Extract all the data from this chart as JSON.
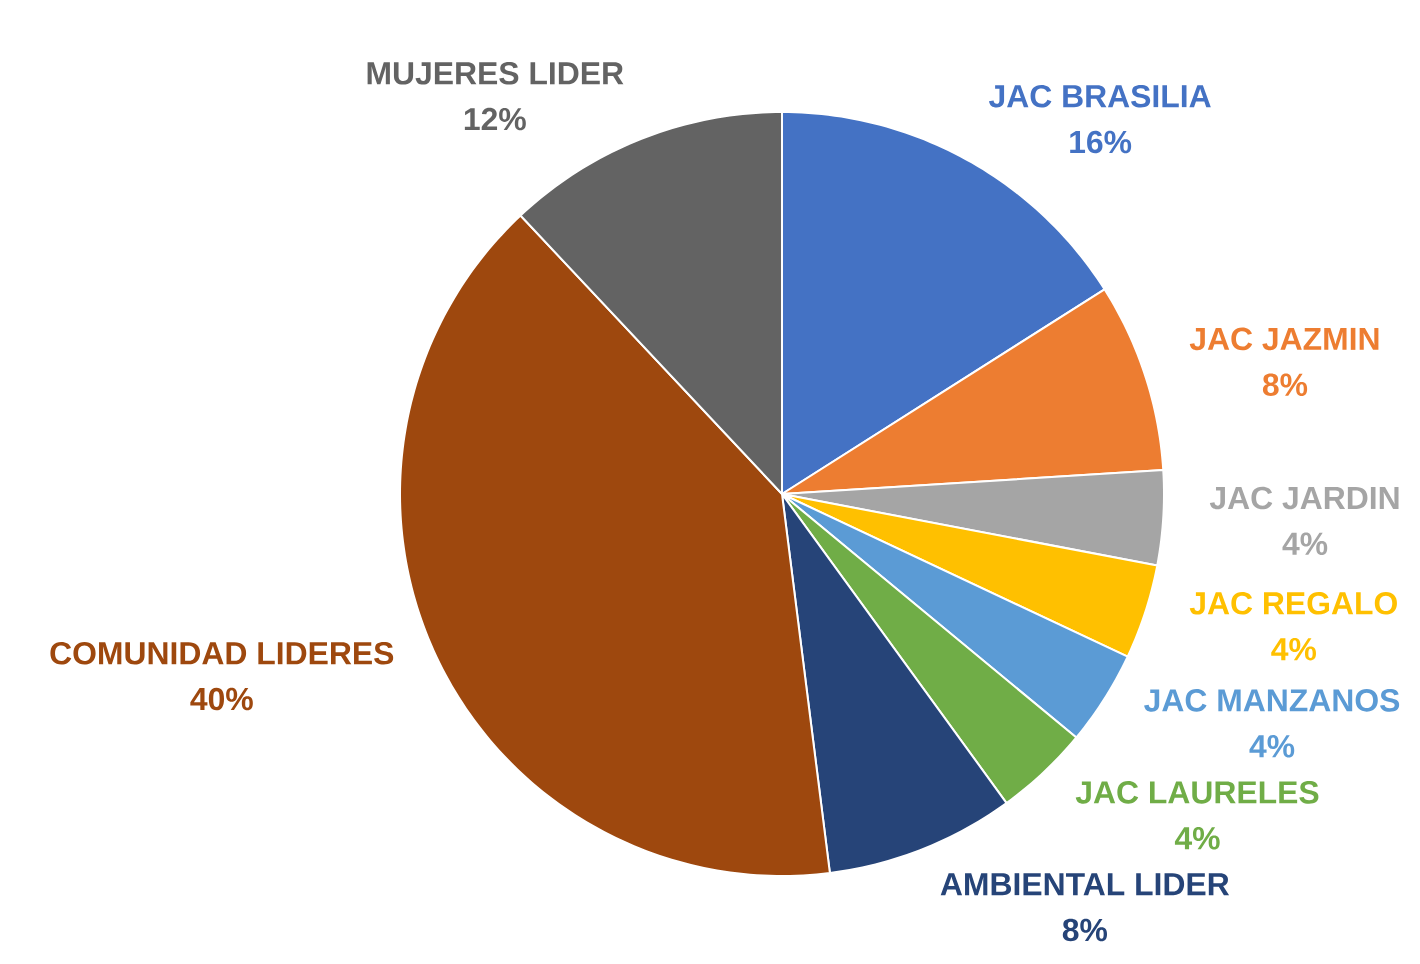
{
  "chart_data": {
    "type": "pie",
    "categories": [
      "JAC BRASILIA",
      "JAC JAZMIN",
      "JAC JARDIN",
      "JAC REGALO",
      "JAC MANZANOS",
      "JAC LAURELES",
      "AMBIENTAL LIDER",
      "COMUNIDAD LIDERES",
      "MUJERES LIDER"
    ],
    "values": [
      16,
      8,
      4,
      4,
      4,
      4,
      8,
      40,
      12
    ],
    "value_labels": [
      "16%",
      "8%",
      "4%",
      "4%",
      "4%",
      "4%",
      "8%",
      "40%",
      "12%"
    ],
    "colors": [
      "#4472c4",
      "#ed7d31",
      "#a5a5a5",
      "#ffc000",
      "#5b9bd5",
      "#70ad47",
      "#264478",
      "#9e480e",
      "#636363"
    ]
  }
}
